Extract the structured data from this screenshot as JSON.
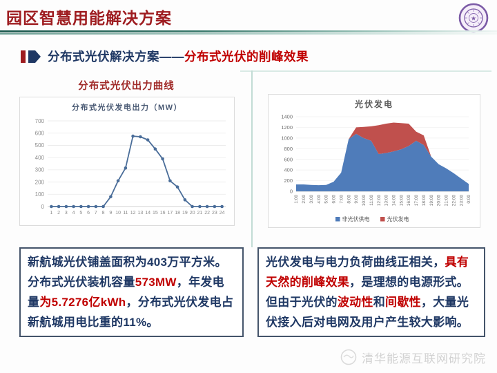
{
  "header": {
    "title": "园区智慧用能解决方案"
  },
  "logo": {
    "name": "tsinghua-university-seal"
  },
  "section": {
    "prefix": "分布式光伏解决方案——",
    "highlight": "分布式光伏的削峰效果"
  },
  "left_chart_label": "分布式光伏出力曲线",
  "chart_data": [
    {
      "id": "pv-output-curve",
      "type": "line",
      "title": "分布式光伏发电出力（MW）",
      "x": [
        "1",
        "2",
        "3",
        "4",
        "5",
        "6",
        "7",
        "8",
        "9",
        "10",
        "11",
        "12",
        "13",
        "14",
        "15",
        "16",
        "17",
        "18",
        "19",
        "20",
        "21",
        "22",
        "23",
        "24"
      ],
      "values": [
        0,
        0,
        0,
        0,
        0,
        0,
        0,
        0,
        80,
        210,
        315,
        575,
        570,
        545,
        470,
        390,
        210,
        160,
        55,
        0,
        0,
        0,
        0,
        0
      ],
      "xlabel": "",
      "ylabel": "",
      "ylim": [
        0,
        700
      ],
      "yticks": [
        0,
        100,
        200,
        300,
        400,
        500,
        600,
        700
      ],
      "grid": true,
      "line_color": "#4a6d99"
    },
    {
      "id": "pv-generation-stack",
      "type": "area",
      "title": "光伏发电",
      "categories": [
        "1:00",
        "2:00",
        "3:00",
        "4:00",
        "5:00",
        "6:00",
        "7:00",
        "8:00",
        "9:00",
        "10:00",
        "11:00",
        "12:00",
        "13:00",
        "14:00",
        "15:00",
        "16:00",
        "17:00",
        "18:00",
        "19:00",
        "20:00",
        "21:00",
        "22:00",
        "23:00",
        "0:00"
      ],
      "series": [
        {
          "name": "非光伏供电",
          "color": "#4f7cba",
          "values": [
            130,
            130,
            120,
            115,
            120,
            180,
            350,
            980,
            1080,
            1000,
            950,
            700,
            720,
            750,
            790,
            850,
            950,
            870,
            650,
            510,
            430,
            340,
            240,
            140
          ]
        },
        {
          "name": "光伏发电",
          "color": "#c0504d",
          "values": [
            0,
            0,
            0,
            0,
            0,
            0,
            0,
            0,
            120,
            210,
            270,
            540,
            550,
            540,
            490,
            420,
            170,
            180,
            0,
            0,
            0,
            0,
            0,
            0
          ]
        }
      ],
      "stacked": true,
      "ylim": [
        0,
        1400
      ],
      "yticks": [
        0,
        200,
        400,
        600,
        800,
        1000,
        1200,
        1400
      ],
      "grid": true,
      "legend_position": "bottom"
    }
  ],
  "textboxes": {
    "left": {
      "segments": [
        {
          "t": "新航城光伏铺盖面积为403万平方米。分布式光伏装机容量",
          "c": "navy"
        },
        {
          "t": "573MW",
          "c": "red"
        },
        {
          "t": "，年发电量",
          "c": "navy"
        },
        {
          "t": "为5.7276亿kWh",
          "c": "red"
        },
        {
          "t": "，分布式光伏发电占新航城用电比重的11%。",
          "c": "navy"
        }
      ]
    },
    "right": {
      "segments": [
        {
          "t": "光伏发电与电力负荷曲线正相关，",
          "c": "navy"
        },
        {
          "t": "具有天然的削峰效果",
          "c": "red"
        },
        {
          "t": "，是理想的电源形式。但由于光伏的",
          "c": "navy"
        },
        {
          "t": "波动性",
          "c": "red"
        },
        {
          "t": "和",
          "c": "navy"
        },
        {
          "t": "间歇性",
          "c": "red"
        },
        {
          "t": "，大量光伏接入后对电网及用户产生较大影响。",
          "c": "navy"
        }
      ]
    }
  },
  "footer": {
    "org": "清华能源互联网研究院"
  },
  "colors": {
    "header_red": "#9e1c20",
    "body_navy": "#1f3864",
    "highlight_red": "#c00000",
    "area_blue": "#4f7cba",
    "area_red": "#c0504d",
    "line_blue": "#4a6d99",
    "divider_teal": "#c2dcd5",
    "seal_purple": "#7b5aa6"
  }
}
